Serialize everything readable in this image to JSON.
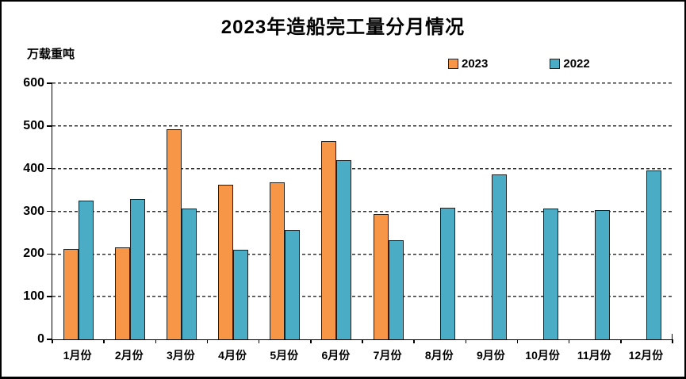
{
  "frame": {
    "background": "#FFFFFF",
    "border_color": "#000000"
  },
  "chart_data": {
    "type": "bar",
    "title": "2023年造船完工量分月情况",
    "unit_label": "万载重吨",
    "xlabel": "",
    "ylabel": "万载重吨",
    "categories": [
      "1月份",
      "2月份",
      "3月份",
      "4月份",
      "5月份",
      "6月份",
      "7月份",
      "8月份",
      "9月份",
      "10月份",
      "11月份",
      "12月份"
    ],
    "series": [
      {
        "name": "2023",
        "color": "#F79646",
        "values": [
          211,
          215,
          493,
          363,
          368,
          465,
          294,
          null,
          null,
          null,
          null,
          null
        ]
      },
      {
        "name": "2022",
        "color": "#4BACC6",
        "values": [
          326,
          328,
          307,
          210,
          256,
          420,
          233,
          309,
          386,
          307,
          302,
          395
        ]
      }
    ],
    "ylim": [
      0,
      600
    ],
    "ytick_step": 100,
    "yticks": [
      0,
      100,
      200,
      300,
      400,
      500,
      600
    ],
    "grid": "horizontal-dashed",
    "legend_position": "top-right",
    "bar_border_color": "#1F1F1F",
    "axis_color": "#000000",
    "gridline_color": "#333333"
  }
}
